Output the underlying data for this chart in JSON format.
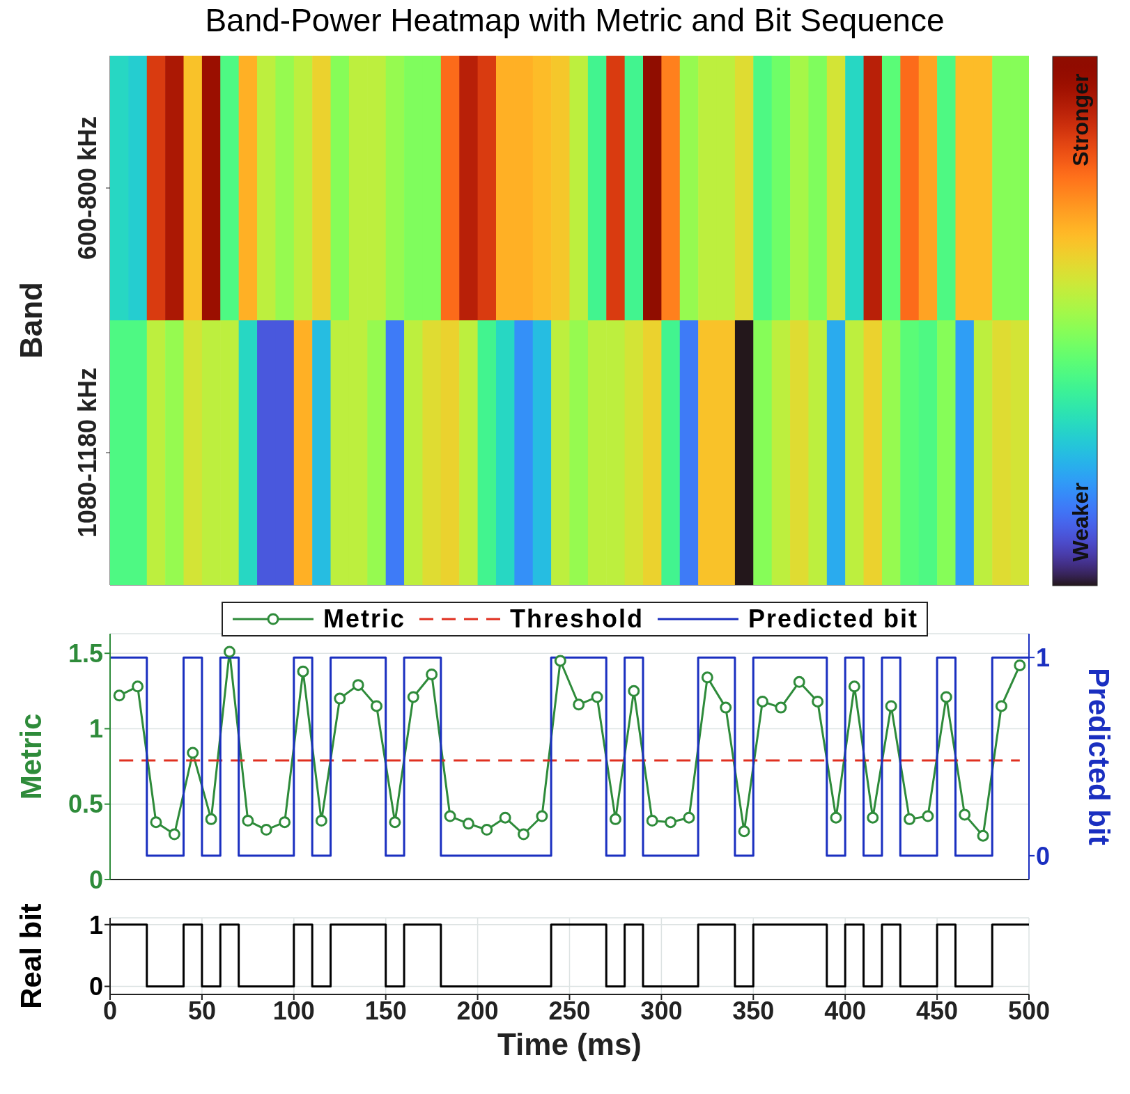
{
  "chart_data": [
    {
      "type": "heatmap",
      "title": "Band-Power Heatmap with Metric and Bit Sequence",
      "ylabel": "Band",
      "tick_labels": "y",
      "categories": [
        null,
        null,
        null,
        null,
        null,
        null,
        null,
        null,
        null,
        null,
        null,
        null,
        null,
        null,
        null,
        null,
        null,
        null,
        null,
        null,
        null,
        null,
        null,
        null,
        null,
        null,
        null,
        null,
        null,
        null,
        null,
        null,
        null,
        null,
        null,
        null,
        null,
        null,
        null,
        null,
        null,
        null,
        null,
        null,
        null,
        null,
        null,
        null,
        null,
        null
      ],
      "y_categories": [
        "600-800 kHz",
        "1080-1180 kHz"
      ],
      "cells": [
        [
          0.3,
          0.28,
          0.85,
          0.92,
          0.65,
          0.95,
          0.4,
          0.68,
          0.55,
          0.5,
          0.55,
          0.62,
          0.48,
          0.55,
          0.55,
          0.5,
          0.47,
          0.47,
          0.78,
          0.9,
          0.85,
          0.68,
          0.68,
          0.66,
          0.64,
          0.55,
          0.38,
          0.85,
          0.38,
          1.0,
          0.75,
          0.5,
          0.55,
          0.55,
          0.6,
          0.4,
          0.45,
          0.52,
          0.47,
          0.58,
          0.3,
          0.9,
          0.42,
          0.78,
          0.7,
          0.4,
          0.66,
          0.66,
          0.48,
          0.48
        ],
        [
          0.4,
          0.4,
          0.55,
          0.5,
          0.58,
          0.55,
          0.55,
          0.3,
          0.1,
          0.1,
          0.68,
          0.25,
          0.55,
          0.55,
          0.5,
          0.15,
          0.55,
          0.6,
          0.62,
          0.55,
          0.38,
          0.3,
          0.18,
          0.25,
          0.55,
          0.5,
          0.55,
          0.55,
          0.58,
          0.62,
          0.38,
          0.15,
          0.65,
          0.65,
          0.0,
          0.48,
          0.55,
          0.6,
          0.55,
          0.22,
          0.55,
          0.62,
          0.5,
          0.42,
          0.4,
          0.48,
          0.2,
          0.55,
          0.6,
          0.58
        ]
      ],
      "clim": [
        0,
        1
      ],
      "cticks": [
        {
          "value": 0.12,
          "label": "Weaker"
        },
        {
          "value": 0.88,
          "label": "Stronger"
        }
      ]
    },
    {
      "type": "line",
      "ylabel": "Metric",
      "y2label": "Predicted bit",
      "tick_labels": "y",
      "grid": true,
      "legend": "top",
      "x": [
        5,
        15,
        25,
        35,
        45,
        55,
        65,
        75,
        85,
        95,
        105,
        115,
        125,
        135,
        145,
        155,
        165,
        175,
        185,
        195,
        205,
        215,
        225,
        235,
        245,
        255,
        265,
        275,
        285,
        295,
        305,
        315,
        325,
        335,
        345,
        355,
        365,
        375,
        385,
        395,
        405,
        415,
        425,
        435,
        445,
        455,
        465,
        475,
        485,
        495
      ],
      "series": [
        {
          "name": "Metric",
          "color": "#2e8b3a",
          "marker": "circle",
          "values": [
            1.22,
            1.28,
            0.38,
            0.3,
            0.84,
            0.4,
            1.51,
            0.39,
            0.33,
            0.38,
            1.38,
            0.39,
            1.2,
            1.29,
            1.15,
            0.38,
            1.21,
            1.36,
            0.42,
            0.37,
            0.33,
            0.41,
            0.3,
            0.42,
            1.45,
            1.16,
            1.21,
            0.4,
            1.25,
            0.39,
            0.38,
            0.41,
            1.34,
            1.14,
            0.32,
            1.18,
            1.14,
            1.31,
            1.18,
            0.41,
            1.28,
            0.41,
            1.15,
            0.4,
            0.42,
            1.21,
            0.43,
            0.29,
            1.15,
            1.42
          ]
        },
        {
          "name": "Threshold",
          "color": "#e03020",
          "marker": "none",
          "line_style": "dashed",
          "x": [
            5,
            495
          ],
          "values": [
            0.79,
            0.79
          ]
        },
        {
          "name": "Predicted bit",
          "color": "#1a2fc0",
          "type": "step",
          "axis": "y2",
          "marker": "none",
          "x": [
            0,
            10,
            20,
            30,
            40,
            50,
            60,
            70,
            80,
            90,
            100,
            110,
            120,
            130,
            140,
            150,
            160,
            170,
            180,
            190,
            200,
            210,
            220,
            230,
            240,
            250,
            260,
            270,
            280,
            290,
            300,
            310,
            320,
            330,
            340,
            350,
            360,
            370,
            380,
            390,
            400,
            410,
            420,
            430,
            440,
            450,
            460,
            470,
            480,
            490,
            500
          ],
          "values": [
            1,
            1,
            0,
            0,
            1,
            0,
            1,
            0,
            0,
            0,
            1,
            0,
            1,
            1,
            1,
            0,
            1,
            1,
            0,
            0,
            0,
            0,
            0,
            0,
            1,
            1,
            1,
            0,
            1,
            0,
            0,
            0,
            1,
            1,
            0,
            1,
            1,
            1,
            1,
            0,
            1,
            0,
            1,
            0,
            0,
            1,
            0,
            0,
            1,
            1,
            1
          ]
        }
      ],
      "xlim": [
        0,
        500
      ],
      "xticks": [
        0,
        50,
        100,
        150,
        200,
        250,
        300,
        350,
        400,
        450,
        500
      ],
      "ylim": [
        0,
        1.63
      ],
      "yticks": [
        0,
        0.5,
        1,
        1.5
      ],
      "y2lim": [
        -0.12,
        1.12
      ],
      "y2ticks": [
        0,
        1
      ]
    },
    {
      "type": "step",
      "ylabel": "Real bit",
      "xlabel": "Time (ms)",
      "grid": true,
      "color": "#000000",
      "x": [
        0,
        10,
        20,
        30,
        40,
        50,
        60,
        70,
        80,
        90,
        100,
        110,
        120,
        130,
        140,
        150,
        160,
        170,
        180,
        190,
        200,
        210,
        220,
        230,
        240,
        250,
        260,
        270,
        280,
        290,
        300,
        310,
        320,
        330,
        340,
        350,
        360,
        370,
        380,
        390,
        400,
        410,
        420,
        430,
        440,
        450,
        460,
        470,
        480,
        490,
        500
      ],
      "values": [
        1,
        1,
        0,
        0,
        1,
        0,
        1,
        0,
        0,
        0,
        1,
        0,
        1,
        1,
        1,
        0,
        1,
        1,
        0,
        0,
        0,
        0,
        0,
        0,
        1,
        1,
        1,
        0,
        1,
        0,
        0,
        0,
        1,
        1,
        0,
        1,
        1,
        1,
        1,
        0,
        1,
        0,
        1,
        0,
        0,
        1,
        0,
        0,
        1,
        1,
        1
      ],
      "xlim": [
        0,
        500
      ],
      "xticks": [
        0,
        50,
        100,
        150,
        200,
        250,
        300,
        350,
        400,
        450,
        500
      ],
      "ylim": [
        -0.13,
        1.11
      ],
      "yticks": [
        0,
        1
      ]
    }
  ]
}
